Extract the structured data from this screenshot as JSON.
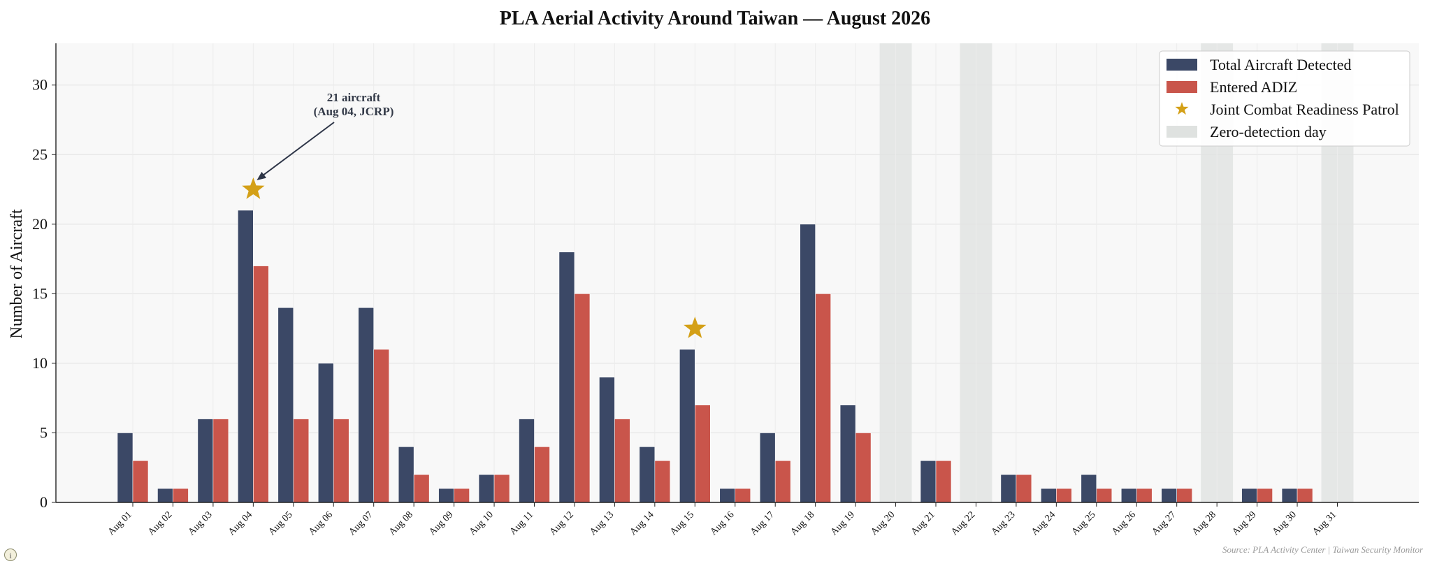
{
  "chart_data": {
    "type": "bar",
    "title": "PLA Aerial Activity Around Taiwan — August 2026",
    "xlabel": "",
    "ylabel": "Number of Aircraft",
    "ylim": [
      0,
      33
    ],
    "yticks": [
      0,
      5,
      10,
      15,
      20,
      25,
      30
    ],
    "grid": true,
    "legend_position": "top-right",
    "categories": [
      "Aug 01",
      "Aug 02",
      "Aug 03",
      "Aug 04",
      "Aug 05",
      "Aug 06",
      "Aug 07",
      "Aug 08",
      "Aug 09",
      "Aug 10",
      "Aug 11",
      "Aug 12",
      "Aug 13",
      "Aug 14",
      "Aug 15",
      "Aug 16",
      "Aug 17",
      "Aug 18",
      "Aug 19",
      "Aug 20",
      "Aug 21",
      "Aug 22",
      "Aug 23",
      "Aug 24",
      "Aug 25",
      "Aug 26",
      "Aug 27",
      "Aug 28",
      "Aug 29",
      "Aug 30",
      "Aug 31"
    ],
    "series": [
      {
        "name": "Total Aircraft Detected",
        "color": "#3b4866",
        "values": [
          5,
          1,
          6,
          21,
          14,
          10,
          14,
          4,
          1,
          2,
          6,
          18,
          9,
          4,
          11,
          1,
          5,
          20,
          7,
          0,
          3,
          0,
          2,
          1,
          2,
          1,
          1,
          0,
          1,
          1,
          0
        ]
      },
      {
        "name": "Entered ADIZ",
        "color": "#c9554b",
        "values": [
          3,
          1,
          6,
          17,
          6,
          6,
          11,
          2,
          1,
          2,
          4,
          15,
          6,
          3,
          7,
          1,
          3,
          15,
          5,
          0,
          3,
          0,
          2,
          1,
          1,
          1,
          1,
          0,
          1,
          1,
          0
        ]
      }
    ],
    "jcrp_markers": {
      "name": "Joint Combat Readiness Patrol",
      "color": "#d4a017",
      "categories": [
        "Aug 04",
        "Aug 15"
      ],
      "y": [
        22.5,
        12.5
      ]
    },
    "zero_detection_days": {
      "name": "Zero-detection day",
      "color": "#dfe2e0",
      "categories": [
        "Aug 20",
        "Aug 22",
        "Aug 28",
        "Aug 31"
      ]
    },
    "annotation": {
      "line1": "21 aircraft",
      "line2": "(Aug 04, JCRP)",
      "target_category": "Aug 04"
    },
    "source": "Source: PLA Activity Center | Taiwan Security Monitor"
  },
  "info_icon": "info-icon",
  "info_icon_glyph": "i"
}
